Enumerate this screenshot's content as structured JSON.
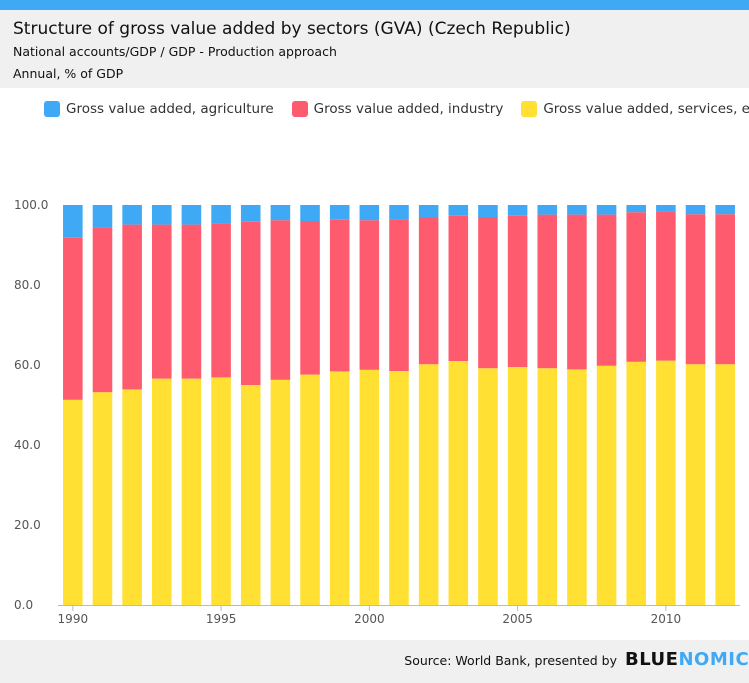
{
  "header": {
    "title": "Structure of gross value added by sectors (GVA) (Czech Republic)",
    "subtitle": "National accounts/GDP / GDP - Production approach",
    "subtitle2": "Annual, % of GDP"
  },
  "colors": {
    "agriculture": "#3fa9f5",
    "industry": "#ff5b6e",
    "services": "#ffe033",
    "topbar": "#3fa9f5"
  },
  "footer": {
    "source": "Source: World Bank, presented by",
    "logo_a": "BLUE",
    "logo_b": "NOMICS"
  },
  "chart_data": {
    "type": "bar",
    "stacked": true,
    "legend_position": "top-left",
    "grid": false,
    "ylim": [
      0,
      100
    ],
    "yticks": [
      "0.0",
      "20.0",
      "40.0",
      "60.0",
      "80.0",
      "100.0"
    ],
    "xticks": [
      "1990",
      "1995",
      "2000",
      "2005",
      "2010"
    ],
    "categories": [
      "1990",
      "1991",
      "1992",
      "1993",
      "1994",
      "1995",
      "1996",
      "1997",
      "1998",
      "1999",
      "2000",
      "2001",
      "2002",
      "2003",
      "2004",
      "2005",
      "2006",
      "2007",
      "2008",
      "2009",
      "2010",
      "2011",
      "2012"
    ],
    "series": [
      {
        "name": "Gross value added, services, etc.",
        "color_key": "services",
        "values": [
          51.3,
          53.2,
          53.9,
          56.6,
          56.6,
          56.9,
          55.0,
          56.3,
          57.6,
          58.4,
          58.8,
          58.5,
          60.2,
          61.0,
          59.2,
          59.5,
          59.2,
          58.9,
          59.8,
          60.8,
          61.1,
          60.2,
          60.2
        ]
      },
      {
        "name": "Gross value added, industry",
        "color_key": "industry",
        "values": [
          40.5,
          41.2,
          41.2,
          38.5,
          38.5,
          38.5,
          40.8,
          39.9,
          38.4,
          37.9,
          37.4,
          37.9,
          36.8,
          36.3,
          37.8,
          37.8,
          38.4,
          38.7,
          37.8,
          37.4,
          37.3,
          37.5,
          37.5
        ]
      },
      {
        "name": "Gross value added, agriculture",
        "color_key": "agriculture",
        "values": [
          8.2,
          5.6,
          4.9,
          4.9,
          4.9,
          4.6,
          4.2,
          3.8,
          4.0,
          3.7,
          3.8,
          3.6,
          3.0,
          2.7,
          3.0,
          2.7,
          2.4,
          2.4,
          2.4,
          1.8,
          1.6,
          2.3,
          2.3
        ]
      }
    ]
  }
}
